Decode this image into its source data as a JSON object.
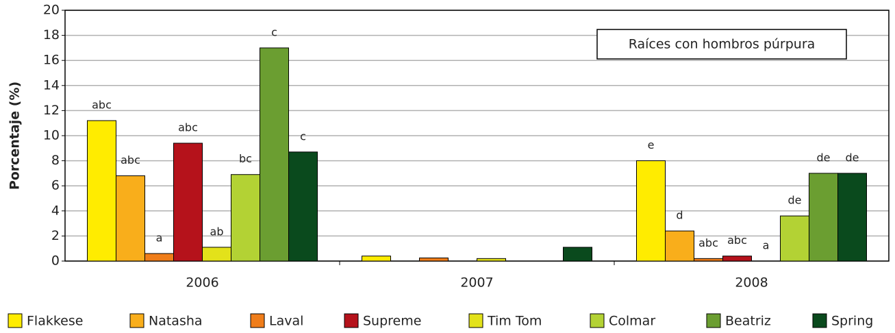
{
  "chart_data": {
    "type": "bar",
    "ylabel": "Porcentaje (%)",
    "annotation": "Raíces con hombros púrpura",
    "categories": [
      "2006",
      "2007",
      "2008"
    ],
    "ylim": [
      0,
      20
    ],
    "yticks": [
      0,
      2,
      4,
      6,
      8,
      10,
      12,
      14,
      16,
      18,
      20
    ],
    "grid": true,
    "series": [
      {
        "name": "Flakkese",
        "color": "#ffec00",
        "values": [
          11.2,
          0.4,
          8
        ],
        "value_labels": [
          "abc",
          null,
          "e"
        ]
      },
      {
        "name": "Natasha",
        "color": "#f9ae1b",
        "values": [
          6.8,
          0,
          2.4
        ],
        "value_labels": [
          "abc",
          null,
          "d"
        ]
      },
      {
        "name": "Laval",
        "color": "#ef7d1a",
        "values": [
          0.6,
          0.25,
          0.2
        ],
        "value_labels": [
          "a",
          null,
          "abc"
        ]
      },
      {
        "name": "Supreme",
        "color": "#b5121b",
        "values": [
          9.4,
          0,
          0.4
        ],
        "value_labels": [
          "abc",
          null,
          "abc"
        ]
      },
      {
        "name": "Tim Tom",
        "color": "#e3e21a",
        "values": [
          1.1,
          0.2,
          0
        ],
        "value_labels": [
          "ab",
          null,
          "a"
        ]
      },
      {
        "name": "Colmar",
        "color": "#b3d234",
        "values": [
          6.9,
          0,
          3.6
        ],
        "value_labels": [
          "bc",
          null,
          "de"
        ]
      },
      {
        "name": "Beatriz",
        "color": "#6b9e31",
        "values": [
          17,
          0,
          7
        ],
        "value_labels": [
          "c",
          null,
          "de"
        ]
      },
      {
        "name": "Spring",
        "color": "#0a4a1d",
        "values": [
          8.7,
          1.1,
          7
        ],
        "value_labels": [
          "c",
          null,
          "de"
        ]
      }
    ]
  }
}
